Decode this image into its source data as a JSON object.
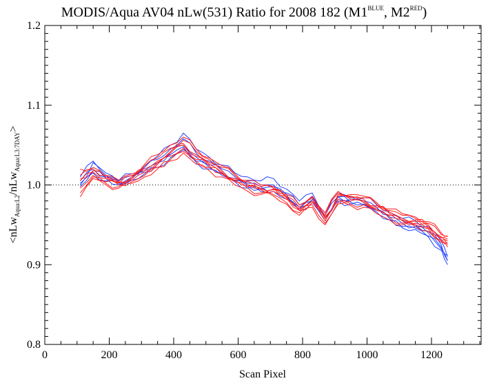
{
  "chart_data": {
    "type": "line",
    "title": "MODIS/Aqua AV04 nLw(531) Ratio for 2008 182 (M1",
    "title_sup1": "BLUE",
    "title_mid": ", M2",
    "title_sup2": "RED",
    "title_end": ")",
    "xlabel": "Scan Pixel",
    "ylabel": {
      "prefix": "<nLw",
      "sub1": "Aqua:L2",
      "mid": "/nLw",
      "sub2": "Aqua:L3:7DAY",
      "suffix": ">"
    },
    "xlim": [
      0,
      1354
    ],
    "ylim": [
      0.8,
      1.2
    ],
    "xticks": [
      0,
      200,
      400,
      600,
      800,
      1000,
      1200
    ],
    "xtick_labels": [
      "0",
      "200",
      "400",
      "600",
      "800",
      "1000",
      "1200"
    ],
    "yticks": [
      0.8,
      0.9,
      1.0,
      1.1,
      1.2
    ],
    "ytick_labels": [
      "0.8",
      "0.9",
      "1.0",
      "1.1",
      "1.2"
    ],
    "reference_line": 1.0,
    "grid": false,
    "colors": {
      "M1": "#2040ff",
      "M2": "#ff1a1a",
      "reference": "#000000"
    },
    "x": [
      110,
      150,
      190,
      230,
      270,
      310,
      350,
      390,
      430,
      470,
      510,
      550,
      590,
      630,
      670,
      710,
      750,
      790,
      830,
      870,
      910,
      950,
      990,
      1030,
      1070,
      1110,
      1150,
      1190,
      1230,
      1250
    ],
    "series": [
      {
        "group": "M1",
        "values": [
          1.005,
          1.02,
          1.01,
          1.005,
          1.012,
          1.022,
          1.032,
          1.045,
          1.058,
          1.04,
          1.03,
          1.02,
          1.01,
          1.005,
          1.0,
          1.0,
          0.99,
          0.975,
          0.985,
          0.962,
          0.985,
          0.982,
          0.98,
          0.972,
          0.962,
          0.955,
          0.95,
          0.942,
          0.925,
          0.905
        ]
      },
      {
        "group": "M1",
        "values": [
          1.0,
          1.028,
          1.015,
          1.002,
          1.008,
          1.018,
          1.028,
          1.04,
          1.05,
          1.035,
          1.025,
          1.018,
          1.008,
          1.002,
          0.998,
          0.995,
          0.985,
          0.972,
          0.982,
          0.958,
          0.982,
          0.98,
          0.978,
          0.97,
          0.96,
          0.952,
          0.948,
          0.94,
          0.92,
          0.9
        ]
      },
      {
        "group": "M1",
        "values": [
          0.998,
          1.018,
          1.008,
          1.0,
          1.01,
          1.016,
          1.026,
          1.038,
          1.048,
          1.03,
          1.022,
          1.015,
          1.005,
          0.998,
          0.995,
          0.998,
          0.988,
          0.97,
          0.98,
          0.96,
          0.985,
          0.978,
          0.976,
          0.968,
          0.958,
          0.948,
          0.946,
          0.935,
          0.918,
          0.905
        ]
      },
      {
        "group": "M1",
        "values": [
          1.01,
          1.03,
          1.012,
          1.006,
          1.014,
          1.024,
          1.036,
          1.05,
          1.065,
          1.045,
          1.035,
          1.025,
          1.015,
          1.01,
          1.005,
          1.008,
          0.995,
          0.98,
          0.99,
          0.965,
          0.99,
          0.985,
          0.984,
          0.975,
          0.966,
          0.958,
          0.955,
          0.948,
          0.93,
          0.91
        ]
      },
      {
        "group": "M1",
        "values": [
          1.002,
          1.015,
          1.005,
          1.0,
          1.006,
          1.014,
          1.022,
          1.034,
          1.044,
          1.028,
          1.02,
          1.012,
          1.004,
          0.996,
          0.992,
          0.992,
          0.982,
          0.968,
          0.978,
          0.955,
          0.98,
          0.976,
          0.975,
          0.966,
          0.956,
          0.946,
          0.944,
          0.936,
          0.922,
          0.912
        ]
      },
      {
        "group": "M2",
        "values": [
          1.02,
          1.022,
          1.01,
          1.004,
          1.01,
          1.02,
          1.03,
          1.042,
          1.052,
          1.038,
          1.028,
          1.018,
          1.008,
          1.0,
          0.996,
          0.995,
          0.985,
          0.97,
          0.98,
          0.958,
          0.988,
          0.984,
          0.982,
          0.974,
          0.966,
          0.958,
          0.956,
          0.95,
          0.935,
          0.93
        ]
      },
      {
        "group": "M2",
        "values": [
          0.99,
          1.01,
          1.002,
          0.998,
          1.006,
          1.016,
          1.026,
          1.036,
          1.046,
          1.032,
          1.024,
          1.014,
          1.004,
          0.996,
          0.99,
          0.988,
          0.978,
          0.965,
          0.975,
          0.952,
          0.978,
          0.976,
          0.975,
          0.968,
          0.96,
          0.952,
          0.95,
          0.945,
          0.93,
          0.925
        ]
      },
      {
        "group": "M2",
        "values": [
          1.005,
          1.016,
          1.008,
          1.002,
          1.012,
          1.024,
          1.034,
          1.046,
          1.056,
          1.042,
          1.032,
          1.022,
          1.012,
          1.004,
          0.998,
          0.996,
          0.986,
          0.972,
          0.984,
          0.962,
          0.99,
          0.986,
          0.984,
          0.976,
          0.968,
          0.962,
          0.958,
          0.952,
          0.938,
          0.935
        ]
      },
      {
        "group": "M2",
        "values": [
          0.996,
          1.012,
          1.004,
          1.0,
          1.004,
          1.012,
          1.022,
          1.032,
          1.042,
          1.03,
          1.022,
          1.014,
          1.006,
          0.998,
          0.994,
          0.992,
          0.982,
          0.968,
          0.978,
          0.955,
          0.982,
          0.98,
          0.978,
          0.97,
          0.962,
          0.955,
          0.952,
          0.946,
          0.932,
          0.928
        ]
      },
      {
        "group": "M2",
        "values": [
          1.008,
          1.018,
          1.01,
          1.003,
          1.008,
          1.018,
          1.028,
          1.04,
          1.05,
          1.036,
          1.026,
          1.016,
          1.006,
          1.0,
          0.995,
          0.994,
          0.984,
          0.968,
          0.98,
          0.96,
          0.986,
          0.982,
          0.98,
          0.972,
          0.964,
          0.956,
          0.954,
          0.948,
          0.934,
          0.932
        ]
      },
      {
        "group": "M2",
        "values": [
          0.985,
          1.008,
          1.0,
          0.996,
          1.002,
          1.01,
          1.02,
          1.03,
          1.04,
          1.026,
          1.018,
          1.01,
          1.0,
          0.992,
          0.988,
          0.986,
          0.976,
          0.962,
          0.972,
          0.95,
          0.976,
          0.974,
          0.972,
          0.964,
          0.956,
          0.95,
          0.948,
          0.942,
          0.928,
          0.922
        ]
      },
      {
        "group": "M2",
        "values": [
          1.012,
          1.02,
          1.012,
          1.006,
          1.014,
          1.026,
          1.038,
          1.05,
          1.06,
          1.045,
          1.034,
          1.024,
          1.014,
          1.006,
          1.0,
          0.998,
          0.988,
          0.975,
          0.986,
          0.965,
          0.992,
          0.988,
          0.986,
          0.978,
          0.97,
          0.964,
          0.96,
          0.954,
          0.94,
          0.936
        ]
      }
    ]
  }
}
